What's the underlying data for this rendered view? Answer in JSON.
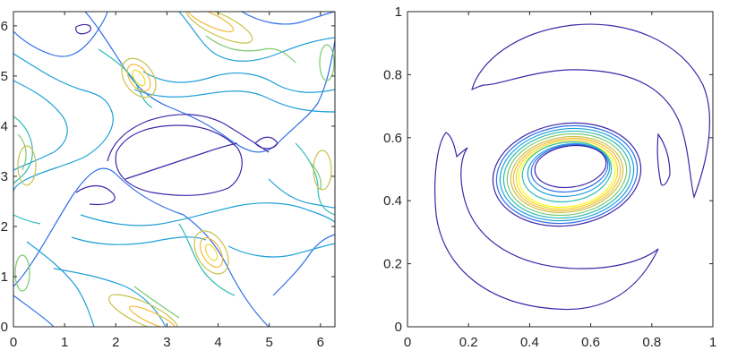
{
  "chart_data": [
    {
      "type": "contour",
      "title": "",
      "xlabel": "",
      "ylabel": "",
      "xlim": [
        0,
        6.2832
      ],
      "ylim": [
        0,
        6.2832
      ],
      "xticks": [
        0,
        1,
        2,
        3,
        4,
        5,
        6
      ],
      "yticks": [
        0,
        1,
        2,
        3,
        4,
        5,
        6
      ],
      "xtick_labels": [
        "0",
        "1",
        "2",
        "3",
        "4",
        "5",
        "6"
      ],
      "ytick_labels": [
        "0",
        "1",
        "2",
        "3",
        "4",
        "5",
        "6"
      ],
      "grid": false,
      "colormap": "parula",
      "colors": [
        "#3e26a8",
        "#2f6fe6",
        "#1fa0d7",
        "#2dbbb4",
        "#7ac96f",
        "#c7c24a",
        "#f5b93a",
        "#f0d92a",
        "#f9fb0e"
      ]
    },
    {
      "type": "contour",
      "title": "",
      "xlabel": "",
      "ylabel": "",
      "xlim": [
        0,
        1
      ],
      "ylim": [
        0,
        1
      ],
      "xticks": [
        0,
        0.2,
        0.4,
        0.6,
        0.8,
        1
      ],
      "yticks": [
        0,
        0.2,
        0.4,
        0.6,
        0.8,
        1
      ],
      "xtick_labels": [
        "0",
        "0.2",
        "0.4",
        "0.6",
        "0.8",
        "1"
      ],
      "ytick_labels": [
        "0",
        "0.2",
        "0.4",
        "0.6",
        "0.8",
        "1"
      ],
      "grid": false,
      "colormap": "parula",
      "colors": [
        "#3e26a8",
        "#2f6fe6",
        "#1fa0d7",
        "#2dbbb4",
        "#7ac96f",
        "#c7c24a",
        "#f5b93a",
        "#f0d92a",
        "#f9fb0e"
      ]
    }
  ]
}
